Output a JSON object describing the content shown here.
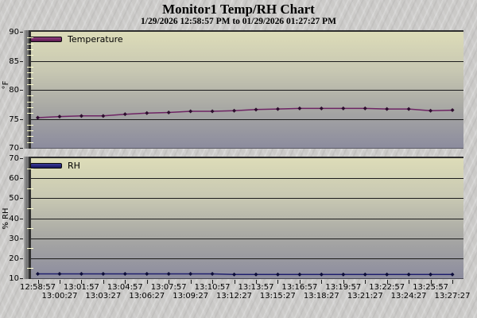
{
  "header": {
    "title": "Monitor1 Temp/RH Chart",
    "subtitle": "1/29/2026 12:58:57 PM to 01/29/2026 01:27:27 PM"
  },
  "colors": {
    "background": "#cbcac8",
    "gridline": "#1c1c1c",
    "minor_tick": "#ffffcf",
    "plot_gradient_top": "#dddcb8",
    "plot_gradient_bottom": "#8c8c9e",
    "temperature_line": "#6e2464",
    "temperature_marker": "#2e0c2e",
    "rh_line": "#1f1f6e",
    "rh_marker": "#0c0c3a"
  },
  "chart_data": [
    {
      "type": "line",
      "title": "Temperature",
      "ylabel": "°F",
      "ylim": [
        70,
        90
      ],
      "ytick_major": 5,
      "ytick_minor": 1,
      "grid": true,
      "legend_position": "top-left",
      "x_labels": [
        "12:58:57",
        "13:00:27",
        "13:01:57",
        "13:03:27",
        "13:04:57",
        "13:06:27",
        "13:07:57",
        "13:09:27",
        "13:10:57",
        "13:12:27",
        "13:13:57",
        "13:15:27",
        "13:16:57",
        "13:18:27",
        "13:19:57",
        "13:21:27",
        "13:22:57",
        "13:24:27",
        "13:25:57",
        "13:27:27"
      ],
      "series": [
        {
          "name": "Temperature",
          "color": "#6e2464",
          "marker_color": "#2e0c2e",
          "values": [
            75.2,
            75.4,
            75.5,
            75.5,
            75.8,
            76.0,
            76.1,
            76.3,
            76.3,
            76.4,
            76.6,
            76.7,
            76.8,
            76.8,
            76.8,
            76.8,
            76.7,
            76.7,
            76.4,
            76.5
          ]
        }
      ]
    },
    {
      "type": "line",
      "title": "RH",
      "ylabel": "% RH",
      "ylim": [
        10,
        70
      ],
      "ytick_major": 10,
      "ytick_minor": 5,
      "grid": true,
      "legend_position": "top-left",
      "x_labels": [
        "12:58:57",
        "13:00:27",
        "13:01:57",
        "13:03:27",
        "13:04:57",
        "13:06:27",
        "13:07:57",
        "13:09:27",
        "13:10:57",
        "13:12:27",
        "13:13:57",
        "13:15:27",
        "13:16:57",
        "13:18:27",
        "13:19:57",
        "13:21:27",
        "13:22:57",
        "13:24:27",
        "13:25:57",
        "13:27:27"
      ],
      "series": [
        {
          "name": "RH",
          "color": "#1f1f6e",
          "marker_color": "#0c0c3a",
          "values": [
            12.2,
            12.2,
            12.2,
            12.2,
            12.2,
            12.2,
            12.2,
            12.2,
            12.2,
            11.9,
            11.9,
            11.9,
            11.9,
            11.9,
            11.9,
            11.9,
            11.9,
            11.9,
            11.9,
            11.9
          ]
        }
      ]
    }
  ]
}
